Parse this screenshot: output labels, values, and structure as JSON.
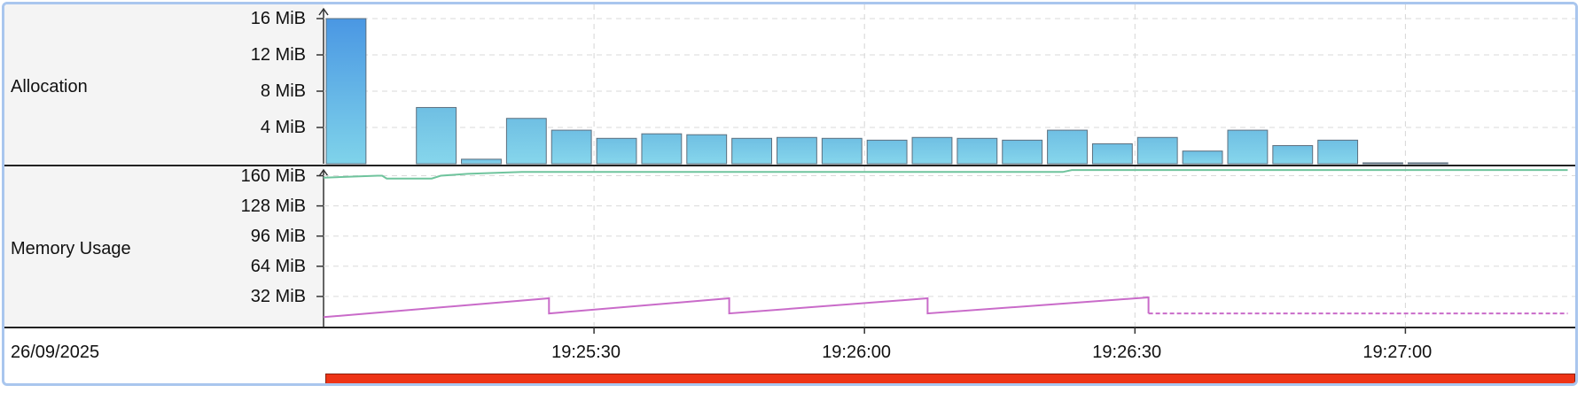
{
  "chart_data": [
    {
      "type": "bar",
      "label": "Allocation",
      "y_ticks": [
        "16 MiB",
        "12 MiB",
        "8 MiB",
        "4 MiB"
      ],
      "y_tick_values": [
        16,
        12,
        8,
        4
      ],
      "unit": "MiB",
      "ylim": [
        0,
        16
      ],
      "bucket_seconds": 5,
      "start_time": "19:25:00",
      "values": [
        16.0,
        0,
        6.2,
        0.5,
        5.0,
        3.7,
        2.8,
        3.3,
        3.2,
        2.8,
        2.9,
        2.8,
        2.6,
        2.9,
        2.8,
        2.6,
        3.7,
        2.2,
        2.9,
        1.4,
        3.7,
        2.0,
        2.6,
        0.1,
        0.1
      ],
      "grid": true
    },
    {
      "type": "line",
      "label": "Memory Usage",
      "y_ticks": [
        "160 MiB",
        "128 MiB",
        "96 MiB",
        "64 MiB",
        "32 MiB"
      ],
      "y_tick_values": [
        160,
        128,
        96,
        64,
        32
      ],
      "unit": "MiB",
      "ylim": [
        0,
        168
      ],
      "series": [
        {
          "color": "#6fc49d",
          "points": [
            [
              0,
              158
            ],
            [
              6,
              160
            ],
            [
              6.5,
              160
            ],
            [
              7,
              157
            ],
            [
              12,
              157
            ],
            [
              13,
              160
            ],
            [
              16,
              162
            ],
            [
              22,
              164
            ],
            [
              30,
              164
            ],
            [
              44,
              164
            ],
            [
              82,
              164
            ],
            [
              83,
              166
            ],
            [
              138,
              166
            ]
          ]
        },
        {
          "color": "#c96bc9",
          "points": [
            [
              0,
              10
            ],
            [
              25,
              30
            ],
            [
              25,
              14
            ],
            [
              45,
              30
            ],
            [
              45,
              14
            ],
            [
              67,
              30
            ],
            [
              67,
              14
            ],
            [
              91.5,
              31
            ],
            [
              91.5,
              14
            ]
          ]
        },
        {
          "color": "#c96bc9",
          "dashed": true,
          "points": [
            [
              91.5,
              14
            ],
            [
              138,
              14
            ]
          ]
        }
      ],
      "grid": true
    }
  ],
  "x_axis": {
    "date": "26/09/2025",
    "ticks": [
      "19:25:30",
      "19:26:00",
      "19:26:30",
      "19:27:00"
    ],
    "tick_seconds": [
      30,
      60,
      90,
      120
    ],
    "range_seconds": [
      0,
      138
    ]
  },
  "timeline_bar_color": "#ee3416"
}
